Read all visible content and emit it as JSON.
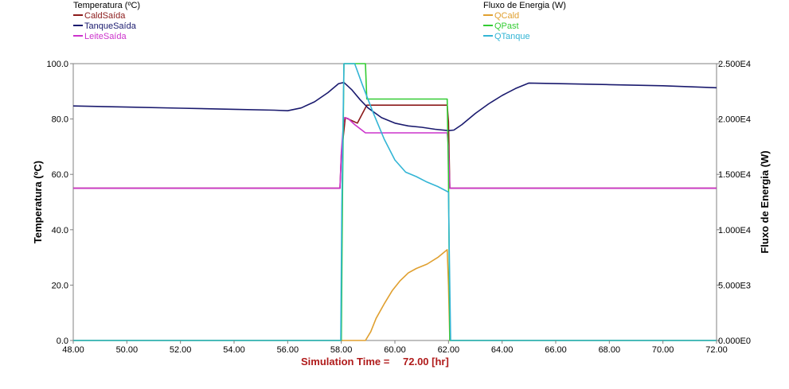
{
  "legend_left": {
    "title": "Temperatura (ºC)",
    "items": [
      {
        "label": "CaldSaída",
        "color": "#8b1a1a"
      },
      {
        "label": "TanqueSaída",
        "color": "#1a1a6e"
      },
      {
        "label": "LeiteSaída",
        "color": "#cc33cc"
      }
    ]
  },
  "legend_right": {
    "title": "Fluxo de Energia (W)",
    "items": [
      {
        "label": "QCald",
        "color": "#e0a030"
      },
      {
        "label": "QPast",
        "color": "#33cc33"
      },
      {
        "label": "QTanque",
        "color": "#33b5d5"
      }
    ]
  },
  "footer": {
    "label": "Simulation Time =",
    "value": "72.00 [hr]"
  },
  "chart_data": {
    "type": "line",
    "xlabel": "",
    "ylabel_left": "Temperatura (ºC)",
    "ylabel_right": "Fluxo de Energia (W)",
    "xlim": [
      48,
      72
    ],
    "ylim_left": [
      0,
      100
    ],
    "ylim_right": [
      0,
      25000
    ],
    "x_ticks": [
      "48.00",
      "50.00",
      "52.00",
      "54.00",
      "56.00",
      "58.00",
      "60.00",
      "62.00",
      "64.00",
      "66.00",
      "68.00",
      "70.00",
      "72.00"
    ],
    "y_ticks_left": [
      "0.0",
      "20.0",
      "40.0",
      "60.0",
      "80.0",
      "100.0"
    ],
    "y_ticks_right": [
      "0.000E0",
      "5.000E3",
      "1.000E4",
      "1.500E4",
      "2.000E4",
      "2.500E4"
    ],
    "grid": false,
    "legend": "top",
    "series": [
      {
        "name": "CaldSaída",
        "axis": "left",
        "color": "#8b1a1a",
        "x": [
          48,
          57.95,
          58.0,
          58.15,
          58.6,
          58.95,
          59.5,
          60,
          61,
          61.95,
          62.0,
          62.05,
          72
        ],
        "y": [
          55,
          55,
          67,
          80.5,
          78.5,
          85,
          85,
          85,
          85,
          85,
          79,
          55,
          55
        ]
      },
      {
        "name": "TanqueSaída",
        "axis": "left",
        "color": "#1a1a6e",
        "x": [
          48,
          50,
          52,
          54,
          55.5,
          56,
          56.5,
          57,
          57.5,
          57.9,
          58.1,
          58.4,
          58.7,
          59,
          59.5,
          60,
          60.5,
          61,
          61.5,
          62,
          62.2,
          62.5,
          63,
          63.5,
          64,
          64.5,
          65,
          66,
          68,
          70,
          72
        ],
        "y": [
          84.7,
          84.3,
          83.9,
          83.5,
          83.2,
          83.0,
          84.0,
          86.2,
          89.5,
          92.8,
          93.2,
          90.5,
          87.0,
          84.0,
          80.5,
          78.5,
          77.5,
          77.0,
          76.3,
          75.8,
          76.0,
          78.0,
          82.0,
          85.5,
          88.5,
          91.0,
          93.0,
          92.8,
          92.4,
          92.0,
          91.3
        ]
      },
      {
        "name": "LeiteSaída",
        "axis": "left",
        "color": "#cc33cc",
        "x": [
          48,
          57.95,
          58.0,
          58.1,
          58.25,
          58.5,
          58.9,
          59.5,
          60,
          61,
          61.95,
          62.0,
          62.05,
          72
        ],
        "y": [
          55,
          55,
          68,
          80.5,
          80.2,
          78.0,
          75,
          75,
          75,
          75,
          75,
          70,
          55,
          55
        ]
      },
      {
        "name": "QCald",
        "axis": "right",
        "color": "#e0a030",
        "x": [
          48,
          58.9,
          59.1,
          59.3,
          59.6,
          59.9,
          60.2,
          60.5,
          60.8,
          61.2,
          61.6,
          61.95,
          62.0,
          62.05,
          72
        ],
        "y": [
          0,
          0,
          800,
          2000,
          3300,
          4500,
          5400,
          6100,
          6500,
          6900,
          7500,
          8200,
          5000,
          0,
          0
        ]
      },
      {
        "name": "QPast",
        "axis": "right",
        "color": "#33cc33",
        "x": [
          48,
          58.0,
          58.05,
          58.1,
          58.9,
          58.95,
          59,
          61.95,
          62.0,
          62.05,
          72
        ],
        "y": [
          0,
          0,
          14000,
          25000,
          25000,
          21800,
          21800,
          21800,
          15000,
          0,
          0
        ]
      },
      {
        "name": "QTanque",
        "axis": "right",
        "color": "#33b5d5",
        "x": [
          48,
          57.98,
          58.02,
          58.1,
          58.5,
          58.8,
          59.2,
          59.6,
          60,
          60.4,
          60.8,
          61.2,
          61.6,
          62.0,
          62.03,
          62.08,
          72
        ],
        "y": [
          0,
          0,
          12000,
          25000,
          25000,
          23000,
          20500,
          18200,
          16300,
          15200,
          14800,
          14300,
          13900,
          13400,
          8000,
          0,
          0
        ]
      }
    ]
  }
}
